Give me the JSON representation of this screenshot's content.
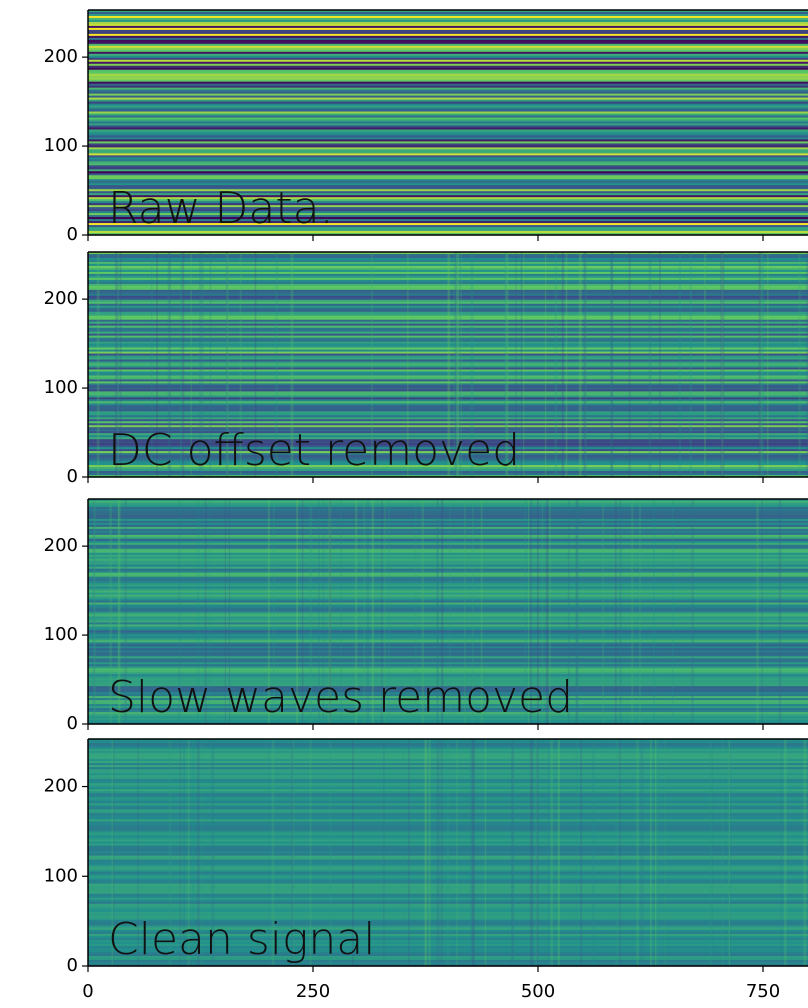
{
  "chart_data": [
    {
      "type": "heatmap",
      "colormap": "viridis",
      "annotation": "Raw Data.",
      "ylim": [
        0,
        253
      ],
      "yticks": [
        0,
        100,
        200
      ],
      "xlim": [
        0,
        800
      ],
      "xticks": [
        0,
        250,
        500,
        750
      ],
      "show_xtick_labels": false
    },
    {
      "type": "heatmap",
      "colormap": "viridis",
      "annotation": "DC offset removed",
      "ylim": [
        0,
        253
      ],
      "yticks": [
        0,
        100,
        200
      ],
      "xlim": [
        0,
        800
      ],
      "xticks": [
        0,
        250,
        500,
        750
      ],
      "show_xtick_labels": false
    },
    {
      "type": "heatmap",
      "colormap": "viridis",
      "annotation": "Slow waves removed",
      "ylim": [
        0,
        253
      ],
      "yticks": [
        0,
        100,
        200
      ],
      "xlim": [
        0,
        800
      ],
      "xticks": [
        0,
        250,
        500,
        750
      ],
      "show_xtick_labels": false
    },
    {
      "type": "heatmap",
      "colormap": "viridis",
      "annotation": "Clean signal",
      "ylim": [
        0,
        253
      ],
      "yticks": [
        0,
        100,
        200
      ],
      "xlim": [
        0,
        800
      ],
      "xticks": [
        0,
        250,
        500,
        750
      ],
      "show_xtick_labels": true
    }
  ]
}
